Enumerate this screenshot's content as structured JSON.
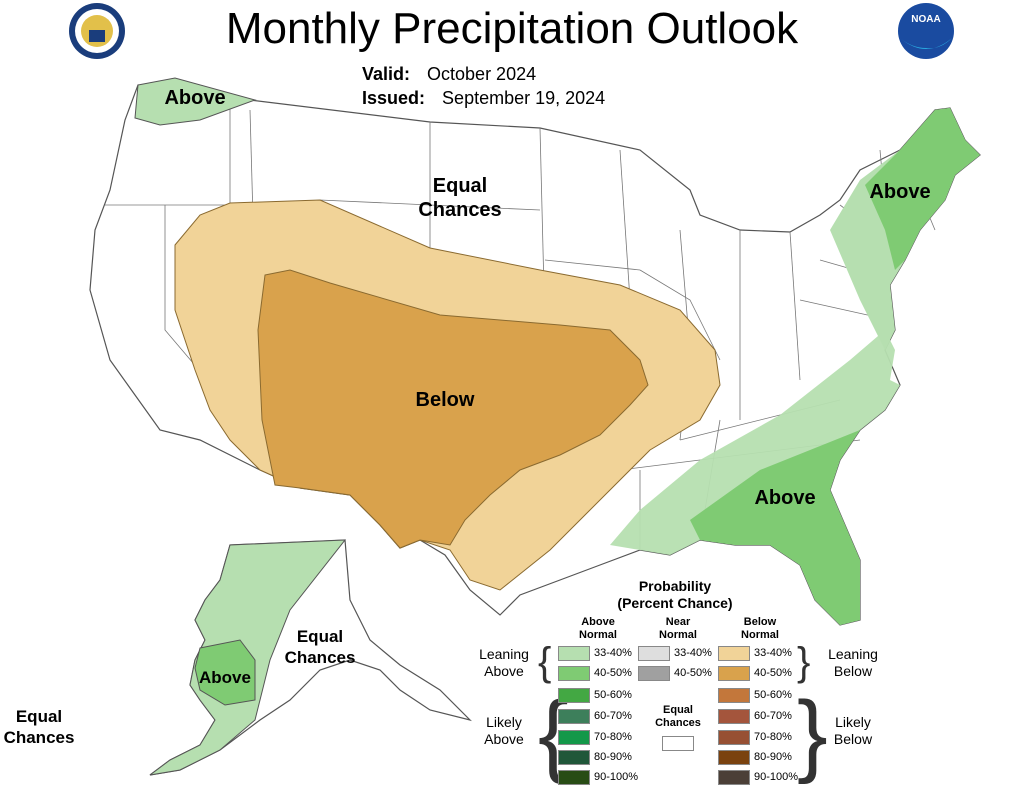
{
  "header": {
    "title": "Monthly Precipitation Outlook",
    "valid_label": "Valid:",
    "valid_value": "October 2024",
    "issued_label": "Issued:",
    "issued_value": "September 19, 2024"
  },
  "logos": {
    "left": "commerce-seal-icon",
    "right": "noaa-logo-icon",
    "right_text": "NOAA"
  },
  "map_labels": {
    "northwest": "Above",
    "northern_plains": "Equal\nChances",
    "northeast": "Above",
    "southwest": "Below",
    "southeast": "Above",
    "alaska_east": "Equal\nChances",
    "alaska_west_area": "Above",
    "alaska_far_west": "Equal\nChances"
  },
  "colors": {
    "above_33_40": "#b6dfb0",
    "above_40_50": "#7fcb73",
    "above_50_60": "#43a843",
    "above_60_70": "#3d7f5b",
    "above_70_80": "#139849",
    "above_80_90": "#205739",
    "above_90_100": "#284c15",
    "near_33_40": "#dedede",
    "near_40_50": "#a0a0a0",
    "below_33_40": "#f1d398",
    "below_40_50": "#d9a24c",
    "below_50_60": "#c3773b",
    "below_60_70": "#a4553c",
    "below_70_80": "#975033",
    "below_80_90": "#7a420f",
    "below_90_100": "#4b3f37",
    "equal": "#ffffff"
  },
  "legend": {
    "title": "Probability\n(Percent Chance)",
    "col_above": "Above\nNormal",
    "col_near": "Near\nNormal",
    "col_below": "Below\nNormal",
    "leaning_above": "Leaning\nAbove",
    "leaning_below": "Leaning\nBelow",
    "likely_above": "Likely\nAbove",
    "likely_below": "Likely\nBelow",
    "equal_chances": "Equal\nChances",
    "above_ranges": [
      "33-40%",
      "40-50%",
      "50-60%",
      "60-70%",
      "70-80%",
      "80-90%",
      "90-100%"
    ],
    "near_ranges": [
      "33-40%",
      "40-50%"
    ],
    "below_ranges": [
      "33-40%",
      "40-50%",
      "50-60%",
      "60-70%",
      "70-80%",
      "80-90%",
      "90-100%"
    ]
  }
}
